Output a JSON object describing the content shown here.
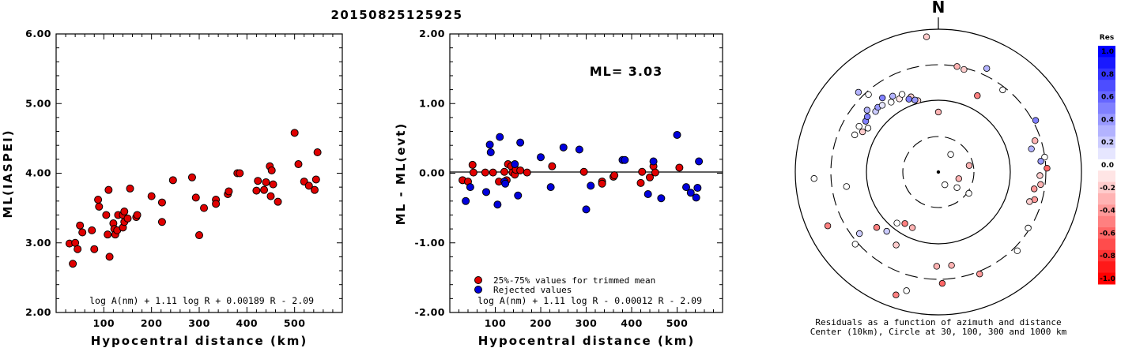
{
  "event_id": "20150825125925",
  "chart_data": [
    {
      "type": "scatter",
      "xlabel": "Hypocentral distance (km)",
      "ylabel": "ML(IASPEI)",
      "xlim": [
        0,
        600
      ],
      "ylim": [
        2.0,
        6.0
      ],
      "xticks": [
        100,
        200,
        300,
        400,
        500
      ],
      "yticks": [
        "2.00",
        "3.00",
        "4.00",
        "5.00",
        "6.00"
      ],
      "formula": "log A(nm) + 1.11 log R + 0.00189 R - 2.09",
      "points_color": "#e00000",
      "points": [
        [
          28,
          2.99
        ],
        [
          35,
          2.7
        ],
        [
          40,
          3.0
        ],
        [
          45,
          2.91
        ],
        [
          50,
          3.25
        ],
        [
          55,
          3.15
        ],
        [
          75,
          3.18
        ],
        [
          80,
          2.91
        ],
        [
          88,
          3.62
        ],
        [
          90,
          3.52
        ],
        [
          105,
          3.4
        ],
        [
          108,
          3.12
        ],
        [
          110,
          3.76
        ],
        [
          112,
          2.8
        ],
        [
          120,
          3.28
        ],
        [
          122,
          3.2
        ],
        [
          124,
          3.12
        ],
        [
          128,
          3.18
        ],
        [
          130,
          3.4
        ],
        [
          140,
          3.22
        ],
        [
          140,
          3.4
        ],
        [
          143,
          3.3
        ],
        [
          143,
          3.45
        ],
        [
          150,
          3.35
        ],
        [
          155,
          3.78
        ],
        [
          168,
          3.37
        ],
        [
          170,
          3.4
        ],
        [
          200,
          3.67
        ],
        [
          222,
          3.3
        ],
        [
          222,
          3.58
        ],
        [
          245,
          3.9
        ],
        [
          285,
          3.94
        ],
        [
          293,
          3.65
        ],
        [
          300,
          3.11
        ],
        [
          310,
          3.5
        ],
        [
          335,
          3.62
        ],
        [
          335,
          3.56
        ],
        [
          360,
          3.7
        ],
        [
          362,
          3.74
        ],
        [
          380,
          4.0
        ],
        [
          385,
          4.0
        ],
        [
          420,
          3.75
        ],
        [
          423,
          3.89
        ],
        [
          436,
          3.76
        ],
        [
          440,
          3.87
        ],
        [
          448,
          4.1
        ],
        [
          450,
          3.67
        ],
        [
          452,
          4.04
        ],
        [
          455,
          3.84
        ],
        [
          465,
          3.59
        ],
        [
          500,
          4.58
        ],
        [
          508,
          4.13
        ],
        [
          520,
          3.88
        ],
        [
          530,
          3.82
        ],
        [
          542,
          3.76
        ],
        [
          545,
          3.91
        ],
        [
          548,
          4.3
        ]
      ]
    },
    {
      "type": "scatter",
      "xlabel": "Hypocentral distance (km)",
      "ylabel": "ML - ML(evt)",
      "xlim": [
        0,
        600
      ],
      "ylim": [
        -2.0,
        2.0
      ],
      "xticks": [
        100,
        200,
        300,
        400,
        500
      ],
      "yticks": [
        "-2.00",
        "-1.00",
        "0.00",
        "1.00",
        "2.00"
      ],
      "annotation": "ML= 3.03",
      "formula": "log A(nm) + 1.11 log R - 0.00012 R - 2.09",
      "series": [
        {
          "name": "25%-75% values for trimmed mean",
          "color": "#e00000",
          "points": [
            [
              28,
              -0.1
            ],
            [
              40,
              -0.12
            ],
            [
              50,
              0.12
            ],
            [
              52,
              0.01
            ],
            [
              78,
              0.01
            ],
            [
              95,
              0.01
            ],
            [
              108,
              -0.12
            ],
            [
              120,
              0.02
            ],
            [
              125,
              -0.1
            ],
            [
              128,
              0.13
            ],
            [
              135,
              0.1
            ],
            [
              138,
              0.01
            ],
            [
              143,
              -0.02
            ],
            [
              145,
              0.05
            ],
            [
              155,
              0.04
            ],
            [
              170,
              0.01
            ],
            [
              225,
              0.1
            ],
            [
              295,
              0.02
            ],
            [
              335,
              -0.12
            ],
            [
              335,
              -0.15
            ],
            [
              360,
              -0.05
            ],
            [
              362,
              -0.03
            ],
            [
              420,
              -0.14
            ],
            [
              423,
              0.02
            ],
            [
              440,
              -0.06
            ],
            [
              448,
              0.1
            ],
            [
              452,
              0.01
            ],
            [
              505,
              0.08
            ]
          ]
        },
        {
          "name": "Rejected values",
          "color": "#0000dd",
          "points": [
            [
              35,
              -0.4
            ],
            [
              45,
              -0.2
            ],
            [
              80,
              -0.27
            ],
            [
              88,
              0.41
            ],
            [
              90,
              0.3
            ],
            [
              105,
              -0.45
            ],
            [
              110,
              0.52
            ],
            [
              120,
              -0.12
            ],
            [
              122,
              -0.15
            ],
            [
              143,
              0.13
            ],
            [
              150,
              -0.32
            ],
            [
              155,
              0.44
            ],
            [
              200,
              0.23
            ],
            [
              222,
              -0.2
            ],
            [
              250,
              0.37
            ],
            [
              285,
              0.34
            ],
            [
              300,
              -0.52
            ],
            [
              310,
              -0.18
            ],
            [
              380,
              0.19
            ],
            [
              385,
              0.19
            ],
            [
              436,
              -0.3
            ],
            [
              448,
              0.17
            ],
            [
              465,
              -0.36
            ],
            [
              500,
              0.55
            ],
            [
              520,
              -0.2
            ],
            [
              530,
              -0.28
            ],
            [
              542,
              -0.35
            ],
            [
              545,
              -0.21
            ],
            [
              548,
              0.17
            ]
          ]
        }
      ]
    },
    {
      "type": "polar-scatter",
      "north_label": "N",
      "caption_line1": "Residuals as a function of azimuth and distance",
      "caption_line2": "Center (10km), Circle at 30, 100, 300 and 1000 km",
      "colorbar_title": "Res",
      "colorbar_ticks": [
        "1.0",
        "0.8",
        "0.6",
        "0.4",
        "0.2",
        "0.0",
        "-0.2",
        "-0.4",
        "-0.6",
        "-0.8",
        "-1.0"
      ],
      "points": [
        [
          355,
          0.95,
          -0.2
        ],
        [
          25,
          0.8,
          0.3
        ],
        [
          10,
          0.75,
          -0.3
        ],
        [
          14,
          0.74,
          -0.2
        ],
        [
          315,
          0.79,
          0.3
        ],
        [
          318,
          0.73,
          0.0
        ],
        [
          38,
          0.73,
          0.0
        ],
        [
          300,
          0.64,
          0.0
        ],
        [
          305,
          0.62,
          0.5
        ],
        [
          308,
          0.63,
          0.5
        ],
        [
          311,
          0.66,
          0.3
        ],
        [
          314,
          0.61,
          0.2
        ],
        [
          317,
          0.62,
          0.4
        ],
        [
          320,
          0.61,
          0.1
        ],
        [
          323,
          0.65,
          0.5
        ],
        [
          326,
          0.59,
          0.0
        ],
        [
          329,
          0.62,
          0.3
        ],
        [
          332,
          0.58,
          -0.1
        ],
        [
          335,
          0.6,
          0.0
        ],
        [
          340,
          0.56,
          -0.2
        ],
        [
          344,
          0.52,
          -0.2
        ],
        [
          338,
          0.55,
          0.5
        ],
        [
          342,
          0.53,
          0.4
        ],
        [
          298,
          0.6,
          -0.2
        ],
        [
          302,
          0.58,
          0.0
        ],
        [
          294,
          0.64,
          0.0
        ],
        [
          0,
          0.42,
          -0.3
        ],
        [
          27,
          0.6,
          -0.5
        ],
        [
          62,
          0.77,
          0.5
        ],
        [
          72,
          0.71,
          -0.3
        ],
        [
          76,
          0.67,
          0.3
        ],
        [
          82,
          0.75,
          0.0
        ],
        [
          84,
          0.72,
          0.4
        ],
        [
          88,
          0.76,
          -0.6
        ],
        [
          92,
          0.71,
          -0.2
        ],
        [
          97,
          0.72,
          -0.3
        ],
        [
          100,
          0.68,
          -0.4
        ],
        [
          106,
          0.7,
          -0.4
        ],
        [
          108,
          0.67,
          -0.2
        ],
        [
          122,
          0.74,
          0.0
        ],
        [
          135,
          0.78,
          0.0
        ],
        [
          158,
          0.77,
          -0.4
        ],
        [
          172,
          0.66,
          -0.3
        ],
        [
          178,
          0.78,
          -0.6
        ],
        [
          181,
          0.66,
          -0.3
        ],
        [
          195,
          0.86,
          0.0
        ],
        [
          199,
          0.91,
          -0.5
        ],
        [
          210,
          0.59,
          -0.2
        ],
        [
          205,
          0.43,
          -0.3
        ],
        [
          213,
          0.43,
          -0.5
        ],
        [
          219,
          0.46,
          0.0
        ],
        [
          221,
          0.55,
          0.2
        ],
        [
          228,
          0.58,
          -0.5
        ],
        [
          229,
          0.77,
          0.0
        ],
        [
          232,
          0.7,
          0.2
        ],
        [
          244,
          0.86,
          -0.5
        ],
        [
          261,
          0.65,
          0.0
        ],
        [
          267,
          0.87,
          0.0
        ],
        [
          153,
          0.1,
          0.0
        ],
        [
          108,
          0.15,
          -0.3
        ],
        [
          35,
          0.15,
          0.0
        ],
        [
          78,
          0.22,
          -0.3
        ],
        [
          130,
          0.17,
          0.0
        ],
        [
          125,
          0.26,
          0.0
        ]
      ]
    }
  ]
}
